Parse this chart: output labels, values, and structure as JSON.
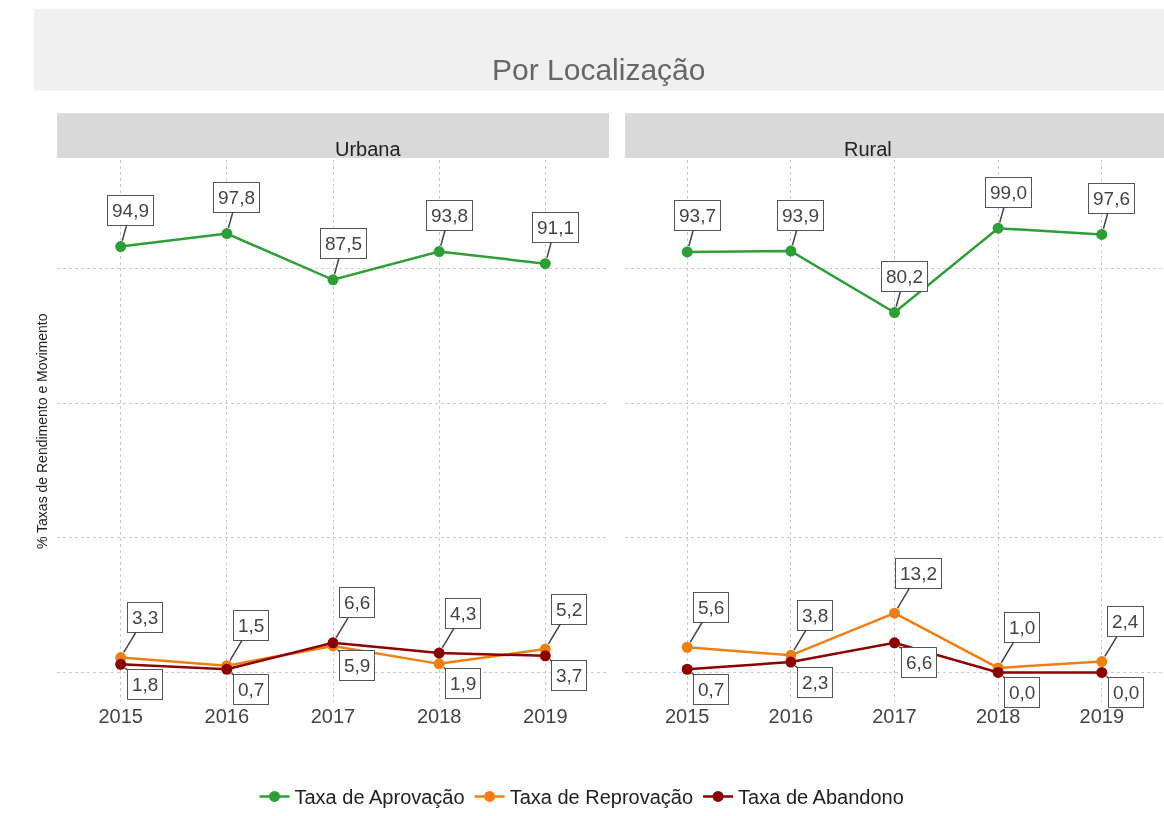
{
  "chart_data": [
    {
      "type": "line",
      "title": "Por Localização",
      "subtitle": "Urbana",
      "ylabel": "% Taxas de Rendimento e Movimento",
      "x": [
        2015,
        2016,
        2017,
        2018,
        2019
      ],
      "xlim": [
        2014.4,
        2019.6
      ],
      "xticks": [
        2015,
        2016,
        2017,
        2018,
        2019
      ],
      "ylim": [
        -6.6,
        114.2
      ],
      "yticks": [
        {
          "value": 0,
          "label": null
        },
        {
          "value": 30,
          "label": null
        },
        {
          "value": 60,
          "label": null
        },
        {
          "value": 90,
          "label": null
        }
      ],
      "tick_labels": "x",
      "grid": true,
      "legend": "bottom",
      "marker": "circle",
      "line_style": "solid",
      "series": [
        {
          "name": "Taxa de Aprovação",
          "color": "#2e9e37",
          "values": [
            94.9,
            97.8,
            87.5,
            93.8,
            91.1
          ],
          "value_labels": [
            "94,9",
            "97,8",
            "87,5",
            "93,8",
            "91,1"
          ]
        },
        {
          "name": "Taxa de Reprovação",
          "color": "#f07f13",
          "values": [
            3.3,
            1.5,
            5.9,
            1.9,
            5.2
          ],
          "value_labels": [
            "3,3",
            "1,5",
            "5,9",
            "1,9",
            "5,2"
          ]
        },
        {
          "name": "Taxa de Abandono",
          "color": "#8b0000",
          "values": [
            1.8,
            0.7,
            6.6,
            4.3,
            3.7
          ],
          "value_labels": [
            "1,8",
            "0,7",
            "6,6",
            "4,3",
            "3,7"
          ]
        }
      ]
    },
    {
      "type": "line",
      "subtitle": "Rural",
      "x": [
        2015,
        2016,
        2017,
        2018,
        2019
      ],
      "xlim": [
        2014.4,
        2019.6
      ],
      "xticks": [
        2015,
        2016,
        2017,
        2018,
        2019
      ],
      "ylim": [
        -6.6,
        114.2
      ],
      "yticks": [
        {
          "value": 0,
          "label": null
        },
        {
          "value": 30,
          "label": null
        },
        {
          "value": 60,
          "label": null
        },
        {
          "value": 90,
          "label": null
        }
      ],
      "tick_labels": "x",
      "grid": true,
      "marker": "circle",
      "line_style": "solid",
      "series": [
        {
          "name": "Taxa de Aprovação",
          "color": "#2e9e37",
          "values": [
            93.7,
            93.9,
            80.2,
            99.0,
            97.6
          ],
          "value_labels": [
            "93,7",
            "93,9",
            "80,2",
            "99,0",
            "97,6"
          ]
        },
        {
          "name": "Taxa de Reprovação",
          "color": "#f07f13",
          "values": [
            5.6,
            3.8,
            13.2,
            1.0,
            2.4
          ],
          "value_labels": [
            "5,6",
            "3,8",
            "13,2",
            "1,0",
            "2,4"
          ]
        },
        {
          "name": "Taxa de Abandono",
          "color": "#8b0000",
          "values": [
            0.7,
            2.3,
            6.6,
            0.0,
            0.0
          ],
          "value_labels": [
            "0,7",
            "2,3",
            "6,6",
            "0,0",
            "0,0"
          ]
        }
      ]
    }
  ]
}
